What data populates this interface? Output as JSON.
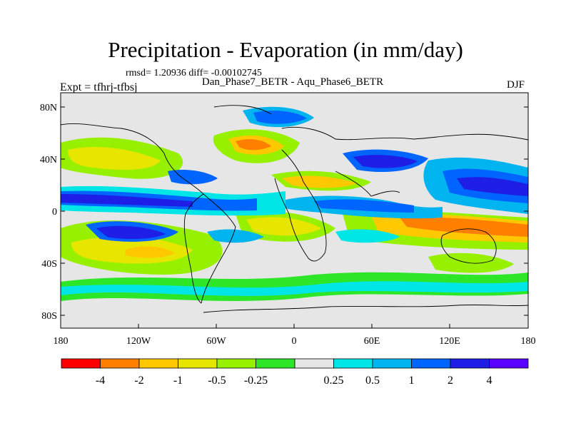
{
  "header": {
    "title": "Precipitation - Evaporation (in mm/day)",
    "stats": "rmsd= 1.20936  diff= -0.00102745",
    "subtitle": "Dan_Phase7_BETR - Aqu_Phase6_BETR",
    "experiment": "Expt = tfhrj-tfbsj",
    "season": "DJF"
  },
  "map": {
    "lat_ticks": [
      "80N",
      "40N",
      "0",
      "40S",
      "80S"
    ],
    "lon_ticks": [
      "180",
      "120W",
      "60W",
      "0",
      "60E",
      "120E",
      "180"
    ]
  },
  "colorbar": {
    "colors": [
      "#ff0000",
      "#ff8000",
      "#ffc800",
      "#e6e600",
      "#96f000",
      "#2de628",
      "#e6e6e6",
      "#00e6e6",
      "#00b4f0",
      "#0064ff",
      "#1e1ee6",
      "#5a00ff"
    ],
    "labels": [
      "-4",
      "-2",
      "-1",
      "-0.5",
      "-0.25",
      "0.25",
      "0.5",
      "1",
      "2",
      "4"
    ]
  }
}
